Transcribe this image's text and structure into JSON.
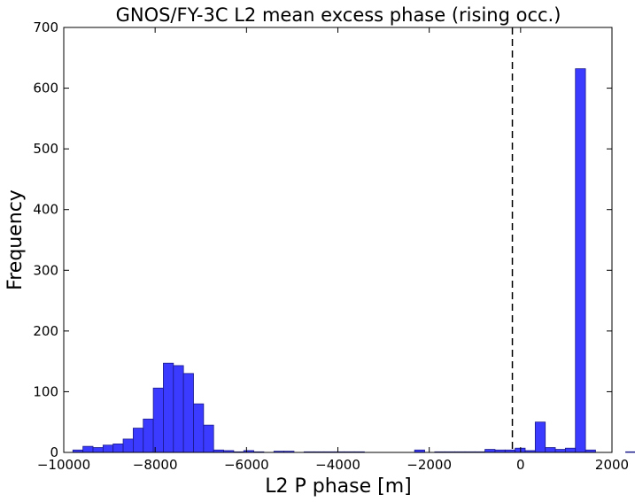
{
  "chart_data": {
    "type": "bar",
    "title": "GNOS/FY-3C L2 mean excess phase (rising occ.)",
    "xlabel": "L2 P phase [m]",
    "ylabel": "Frequency",
    "xlim": [
      -10000,
      2000
    ],
    "ylim": [
      0,
      700
    ],
    "xticks": [
      -10000,
      -8000,
      -6000,
      -4000,
      -2000,
      0,
      2000
    ],
    "xtick_labels": [
      "−10000",
      "−8000",
      "−6000",
      "−4000",
      "−2000",
      "0",
      "2000"
    ],
    "yticks": [
      0,
      100,
      200,
      300,
      400,
      500,
      600,
      700
    ],
    "ytick_labels": [
      "0",
      "100",
      "200",
      "300",
      "400",
      "500",
      "600",
      "700"
    ],
    "bin_edges_start": -9800,
    "bin_width": 220,
    "values": [
      4,
      10,
      8,
      12,
      14,
      22,
      40,
      55,
      106,
      147,
      143,
      130,
      80,
      45,
      4,
      3,
      1,
      3,
      1,
      0,
      2,
      2,
      0,
      1,
      1,
      1,
      1,
      1,
      1,
      0,
      0,
      0,
      0,
      0,
      4,
      0,
      1,
      1,
      1,
      1,
      1,
      5,
      4,
      4,
      7,
      3,
      50,
      8,
      5,
      7,
      632,
      4,
      0,
      0,
      0,
      1,
      0,
      0,
      1,
      1,
      2,
      1,
      0,
      5
    ],
    "vline_x": -180,
    "vline_style": "dashed",
    "bar_color": "#3b3bff",
    "edge_color": "#1a1a8a",
    "grid": false,
    "legend": "none"
  }
}
